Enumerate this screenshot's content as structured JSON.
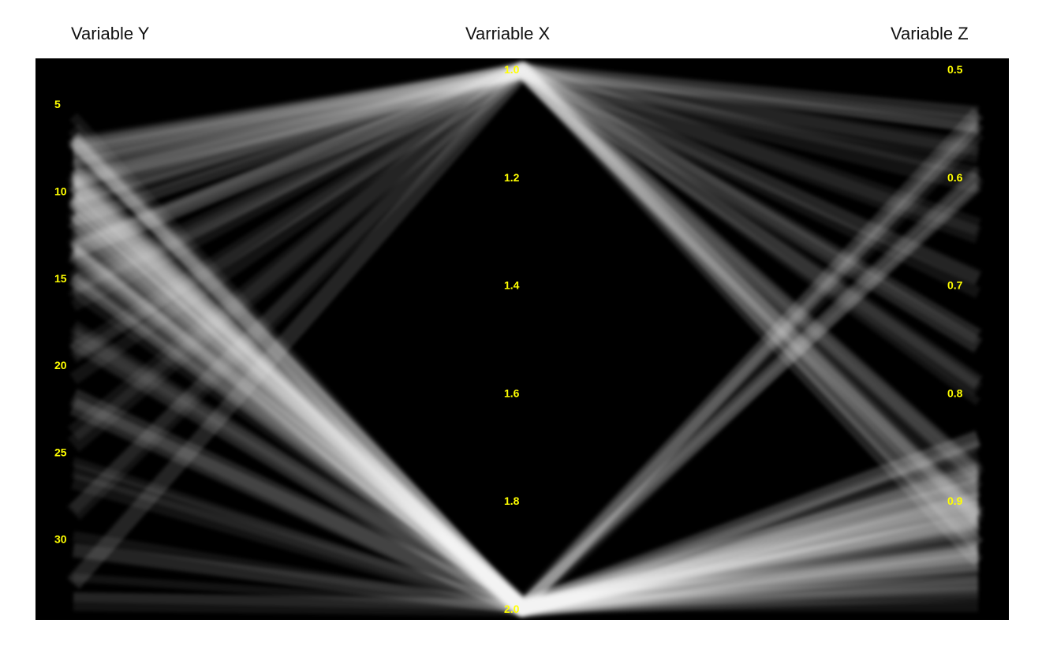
{
  "axes_titles": {
    "y": "Variable Y",
    "x": "Varriable X",
    "z": "Variable Z"
  },
  "colors": {
    "background": "#000000",
    "line": "#ffffff",
    "tick_label": "#ffff00",
    "title": "#111111"
  },
  "chart_data": {
    "type": "parallel_coordinates",
    "dimensions": [
      {
        "name": "Variable Y",
        "range": [
          3,
          34
        ],
        "ticks": [
          5,
          10,
          15,
          20,
          25,
          30
        ],
        "tick_labels": [
          "5",
          "10",
          "15",
          "20",
          "25",
          "30"
        ]
      },
      {
        "name": "Varriable X",
        "range": [
          1.0,
          2.0
        ],
        "ticks": [
          1.0,
          1.2,
          1.4,
          1.6,
          1.8,
          2.0
        ],
        "tick_labels": [
          "1.0",
          "1.2",
          "1.4",
          "1.6",
          "1.8",
          "2.0"
        ]
      },
      {
        "name": "Variable Z",
        "range": [
          0.5,
          1.0
        ],
        "ticks": [
          0.5,
          0.6,
          0.7,
          0.8,
          0.9
        ],
        "tick_labels": [
          "0.5",
          "0.6",
          "0.7",
          "0.8",
          "0.9"
        ]
      }
    ],
    "line_style": "semi-transparent white",
    "line_groups": [
      {
        "y": 6.5,
        "x": 2.0,
        "z": 0.9,
        "count": 10
      },
      {
        "y": 9,
        "x": 2.0,
        "z": 0.92,
        "count": 14
      },
      {
        "y": 11,
        "x": 2.0,
        "z": 0.88,
        "count": 12
      },
      {
        "y": 13,
        "x": 2.0,
        "z": 0.95,
        "count": 10
      },
      {
        "y": 10,
        "x": 2.0,
        "z": 0.55,
        "count": 6
      },
      {
        "y": 12,
        "x": 2.0,
        "z": 0.6,
        "count": 6
      },
      {
        "y": 15,
        "x": 2.0,
        "z": 0.85,
        "count": 6
      },
      {
        "y": 18,
        "x": 2.0,
        "z": 0.9,
        "count": 4
      },
      {
        "y": 22,
        "x": 2.0,
        "z": 0.95,
        "count": 4
      },
      {
        "y": 26,
        "x": 2.0,
        "z": 0.97,
        "count": 3
      },
      {
        "y": 30,
        "x": 2.0,
        "z": 0.98,
        "count": 3
      },
      {
        "y": 33,
        "x": 2.0,
        "z": 0.99,
        "count": 3
      },
      {
        "y": 7,
        "x": 1.0,
        "z": 0.55,
        "count": 5
      },
      {
        "y": 9,
        "x": 1.0,
        "z": 0.92,
        "count": 8
      },
      {
        "y": 11,
        "x": 1.0,
        "z": 0.95,
        "count": 6
      },
      {
        "y": 13,
        "x": 1.0,
        "z": 0.88,
        "count": 5
      },
      {
        "y": 16,
        "x": 1.0,
        "z": 0.8,
        "count": 4
      },
      {
        "y": 20,
        "x": 1.0,
        "z": 0.7,
        "count": 3
      },
      {
        "y": 24,
        "x": 1.0,
        "z": 0.65,
        "count": 2
      },
      {
        "y": 28,
        "x": 1.0,
        "z": 0.6,
        "count": 2
      },
      {
        "y": 32,
        "x": 1.0,
        "z": 0.58,
        "count": 2
      },
      {
        "y": 8,
        "x": 1.0,
        "z": 0.75,
        "count": 4
      }
    ]
  }
}
